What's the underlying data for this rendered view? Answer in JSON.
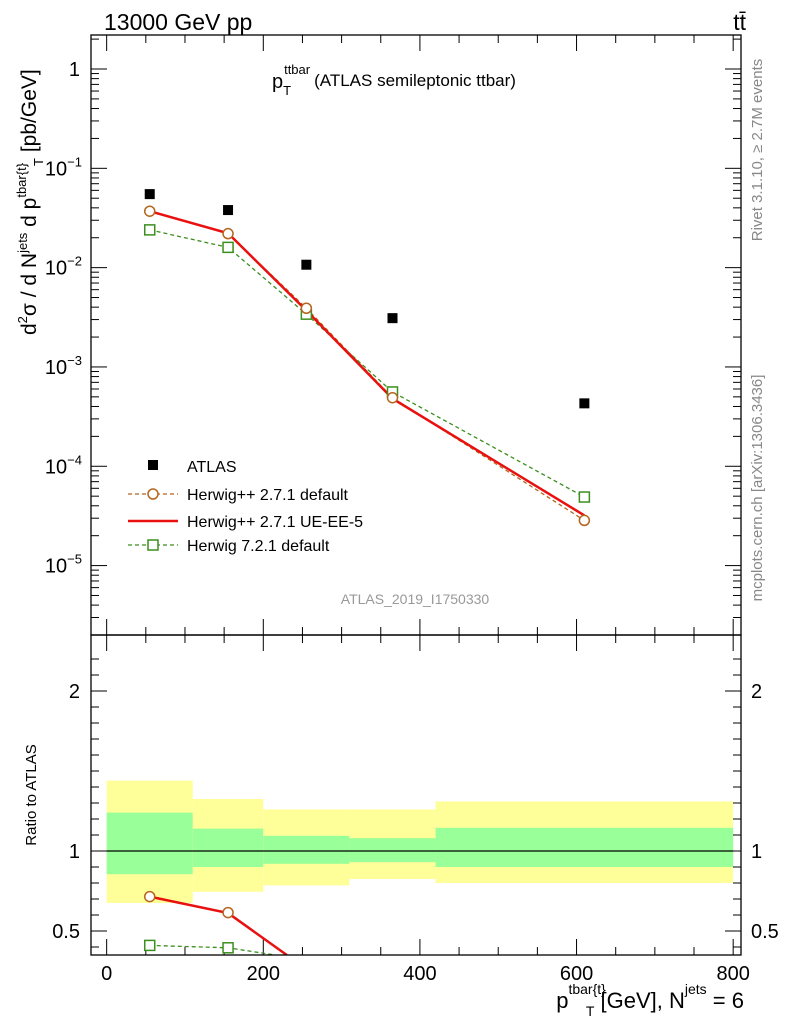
{
  "header": {
    "left": "13000 GeV pp",
    "right": "tt̄"
  },
  "title": {
    "main": "p",
    "main_sub": "T",
    "main_sup": "ttbar",
    "extra": "(ATLAS semileptonic ttbar)"
  },
  "side_labels": {
    "rivet": "Rivet 3.1.10, ≥ 2.7M events",
    "mcplots": "mcplots.cern.ch [arXiv:1306.3436]"
  },
  "analysis_id": "ATLAS_2019_I1750330",
  "axes": {
    "ylabel": "d²σ / d Nʲᵉᵗˢ d pᵀ",
    "ylabel_parts": {
      "a": "d",
      "a_sup": "2",
      "b": "σ  /  d N",
      "b_sup": "jets",
      "c": " d p",
      "c_sup": "tbar{t}",
      "c_sub": "T",
      "d": " [pb/GeV]"
    },
    "ratio_ylabel": "Ratio to ATLAS",
    "xlabel_parts": {
      "a": "p",
      "a_sup": "tbar{t}",
      "a_sub": "T",
      "b": " [GeV], N",
      "b_sup": "jets",
      "c": " = 6"
    },
    "main_yticks": [
      {
        "v": 1.0,
        "base": "1",
        "exp": ""
      },
      {
        "v": 0.1,
        "base": "10",
        "exp": "−1"
      },
      {
        "v": 0.01,
        "base": "10",
        "exp": "−2"
      },
      {
        "v": 0.001,
        "base": "10",
        "exp": "−3"
      },
      {
        "v": 0.0001,
        "base": "10",
        "exp": "−4"
      },
      {
        "v": 1e-05,
        "base": "10",
        "exp": "−5"
      }
    ],
    "ratio_yticks": [
      {
        "v": 2,
        "label": "2"
      },
      {
        "v": 1,
        "label": "1"
      },
      {
        "v": 0.5,
        "label": "0.5"
      }
    ],
    "xticks": [
      {
        "v": 0,
        "label": "0"
      },
      {
        "v": 200,
        "label": "200"
      },
      {
        "v": 400,
        "label": "400"
      },
      {
        "v": 600,
        "label": "600"
      },
      {
        "v": 800,
        "label": "800"
      }
    ]
  },
  "legend": {
    "atlas": "ATLAS",
    "h271": "Herwig++ 2.7.1 default",
    "h271ue": "Herwig++ 2.7.1 UE-EE-5",
    "h721": "Herwig 7.2.1 default"
  },
  "chart_data": {
    "type": "scatter",
    "title": "p_T^ttbar (ATLAS semileptonic ttbar)",
    "xlabel": "p_T^tbar{t} [GeV], N^jets = 6",
    "ylabel": "d^2sigma / d N^jets d p_T^tbar{t} [pb/GeV]",
    "xlim": [
      -20,
      810
    ],
    "ylim": [
      2e-06,
      2.2
    ],
    "yscale": "log",
    "ratio_ylim": [
      0.35,
      2.35
    ],
    "bin_edges": [
      0,
      110,
      200,
      310,
      420,
      800
    ],
    "series": [
      {
        "name": "ATLAS",
        "x": [
          55,
          155,
          255,
          365,
          610
        ],
        "values": [
          0.055,
          0.038,
          0.0107,
          0.0031,
          0.00043
        ]
      },
      {
        "name": "Herwig++ 2.7.1 default",
        "x": [
          55,
          155,
          255,
          365,
          610
        ],
        "values": [
          0.037,
          0.022,
          0.0039,
          0.00049,
          2.85e-05
        ]
      },
      {
        "name": "Herwig++ 2.7.1 UE-EE-5",
        "x": [
          55,
          155,
          255,
          365,
          610
        ],
        "values": [
          0.037,
          0.0222,
          0.0037,
          0.00048,
          3.2e-05
        ]
      },
      {
        "name": "Herwig 7.2.1 default",
        "x": [
          55,
          155,
          255,
          365,
          610
        ],
        "values": [
          0.024,
          0.016,
          0.0034,
          0.00056,
          4.9e-05
        ]
      }
    ],
    "ratio": {
      "bands": [
        {
          "x0": 0,
          "x1": 110,
          "y_lo": 0.675,
          "y_hi": 1.44,
          "g_lo": 0.855,
          "g_hi": 1.24
        },
        {
          "x0": 110,
          "x1": 200,
          "y_lo": 0.745,
          "y_hi": 1.325,
          "g_lo": 0.9,
          "g_hi": 1.14
        },
        {
          "x0": 200,
          "x1": 310,
          "y_lo": 0.785,
          "y_hi": 1.26,
          "g_lo": 0.92,
          "g_hi": 1.095
        },
        {
          "x0": 310,
          "x1": 420,
          "y_lo": 0.825,
          "y_hi": 1.26,
          "g_lo": 0.93,
          "g_hi": 1.08
        },
        {
          "x0": 420,
          "x1": 800,
          "y_lo": 0.8,
          "y_hi": 1.31,
          "g_lo": 0.9,
          "g_hi": 1.145
        }
      ],
      "h271": {
        "x": [
          55,
          155,
          230
        ],
        "values": [
          0.715,
          0.615,
          0.35
        ]
      },
      "h271ue": {
        "x": [
          55,
          155,
          230
        ],
        "values": [
          0.715,
          0.612,
          0.35
        ]
      },
      "h721": {
        "x": [
          55,
          155,
          215
        ],
        "values": [
          0.41,
          0.395,
          0.35
        ]
      }
    }
  },
  "colors": {
    "h271": "#b5651d",
    "h271ue": "#e8110f",
    "h721": "#3b8f1e",
    "band_outer": "#ffff99",
    "band_inner": "#99ff99",
    "side_text": "#888888"
  }
}
